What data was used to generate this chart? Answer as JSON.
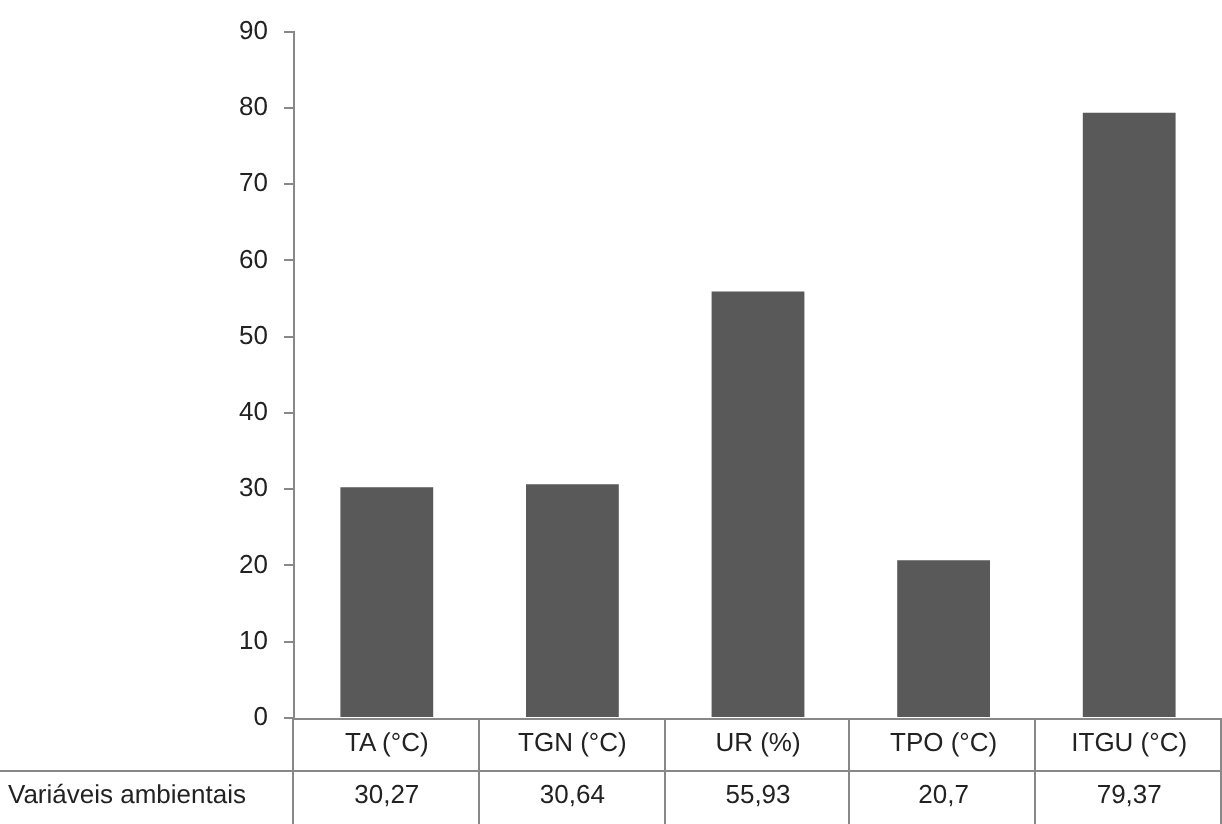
{
  "chart_data": {
    "type": "bar",
    "categories": [
      "TA (°C)",
      "TGN (°C)",
      "UR (%)",
      "TPO (°C)",
      "ITGU (°C)"
    ],
    "series": [
      {
        "name": "Variáveis ambientais",
        "color": "#595959",
        "values": [
          30.27,
          30.64,
          55.93,
          20.7,
          79.37
        ],
        "value_labels": [
          "30,27",
          "30,64",
          "55,93",
          "20,7",
          "79,37"
        ]
      }
    ],
    "ylim": [
      0,
      90
    ],
    "yticks": [
      0,
      10,
      20,
      30,
      40,
      50,
      60,
      70,
      80,
      90
    ]
  }
}
